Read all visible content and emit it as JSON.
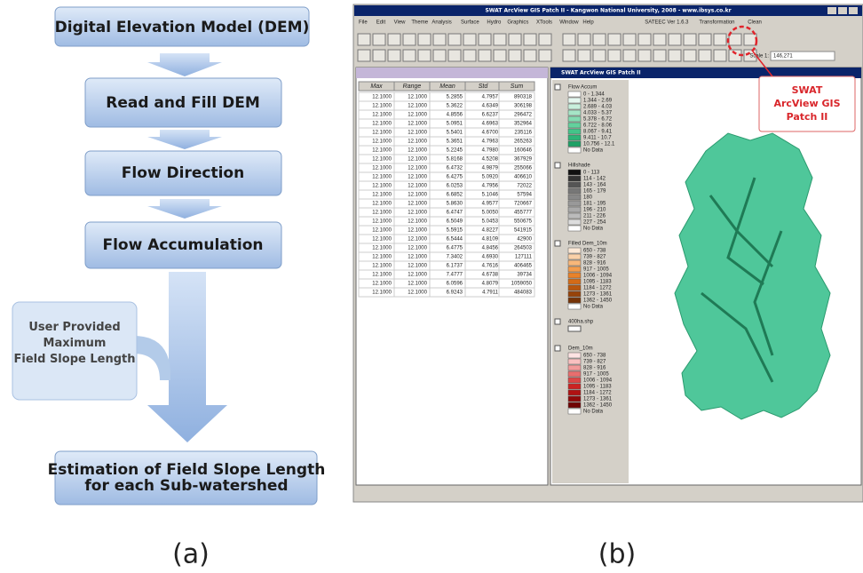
{
  "flowchart": {
    "nodes": [
      {
        "label": "Digital Elevation Model (DEM)"
      },
      {
        "label": "Read and Fill DEM"
      },
      {
        "label": "Flow Direction"
      },
      {
        "label": "Flow Accumulation"
      },
      {
        "label": "Estimation of Field Slope Length for each Sub-watershed"
      }
    ],
    "side_input": "User Provided Maximum Field Slope Length"
  },
  "captions": [
    "(a)",
    "(b)"
  ],
  "screenshot": {
    "title": "SWAT ArcView GIS Patch II - Kangwon National University, 2008 - www.ibsys.co.kr",
    "menus": [
      "File",
      "Edit",
      "View",
      "Theme",
      "Analysis",
      "Surface",
      "Hydro",
      "Graphics",
      "XTools",
      "Window",
      "Help",
      "SATEEC Ver 1.6.3",
      "Transformation",
      "Clean"
    ],
    "scale_label": "Scale 1:",
    "scale_value": "146,271",
    "view_title": "SWAT ArcView GIS Patch II",
    "callout": "SWAT ArcView GIS Patch II",
    "table": {
      "columns": [
        "Max",
        "Range",
        "Mean",
        "Std",
        "Sum"
      ],
      "rows": [
        [
          "12.1000",
          "12.1000",
          "5.2855",
          "4.7957",
          "890318"
        ],
        [
          "12.1000",
          "12.1000",
          "5.3622",
          "4.6349",
          "306198"
        ],
        [
          "12.1000",
          "12.1000",
          "4.8556",
          "6.6237",
          "296472"
        ],
        [
          "12.1000",
          "12.1000",
          "5.0951",
          "4.6963",
          "352964"
        ],
        [
          "12.1000",
          "12.1000",
          "5.5401",
          "4.6700",
          "235116"
        ],
        [
          "12.1000",
          "12.1000",
          "5.3651",
          "4.7963",
          "265263"
        ],
        [
          "12.1000",
          "12.1000",
          "5.2245",
          "4.7980",
          "160646"
        ],
        [
          "12.1000",
          "12.1000",
          "5.8168",
          "4.5208",
          "367929"
        ],
        [
          "12.1000",
          "12.1000",
          "6.4732",
          "4.9879",
          "255066"
        ],
        [
          "12.1000",
          "12.1000",
          "6.4275",
          "5.0920",
          "406610"
        ],
        [
          "12.1000",
          "12.1000",
          "6.0253",
          "4.7956",
          "72022"
        ],
        [
          "12.1000",
          "12.1000",
          "6.6852",
          "5.1046",
          "57594"
        ],
        [
          "12.1000",
          "12.1000",
          "5.8630",
          "4.9577",
          "720667"
        ],
        [
          "12.1000",
          "12.1000",
          "6.4747",
          "5.0050",
          "455777"
        ],
        [
          "12.1000",
          "12.1000",
          "6.5049",
          "5.0453",
          "550675"
        ],
        [
          "12.1000",
          "12.1000",
          "5.5915",
          "4.8227",
          "541915"
        ],
        [
          "12.1000",
          "12.1000",
          "6.5444",
          "4.8109",
          "42900"
        ],
        [
          "12.1000",
          "12.1000",
          "6.4775",
          "4.8456",
          "264503"
        ],
        [
          "12.1000",
          "12.1000",
          "7.3402",
          "4.6930",
          "127111"
        ],
        [
          "12.1000",
          "12.1000",
          "6.1737",
          "4.7616",
          "406465"
        ],
        [
          "12.1000",
          "12.1000",
          "7.4777",
          "4.6738",
          "39734"
        ],
        [
          "12.1000",
          "12.1000",
          "6.0596",
          "4.8079",
          "1059050"
        ],
        [
          "12.1000",
          "12.1000",
          "6.9243",
          "4.7911",
          "484083"
        ]
      ]
    },
    "legend": [
      {
        "name": "Flow Accum",
        "items": [
          "0 - 1.344",
          "1.344 - 2.69",
          "2.689 - 4.03",
          "4.033 - 5.37",
          "5.378 - 6.72",
          "6.722 - 8.06",
          "8.067 - 9.41",
          "9.411 - 10.7",
          "10.756 - 12.1",
          "No Data"
        ]
      },
      {
        "name": "Hillshade",
        "items": [
          "0 - 113",
          "114 - 142",
          "143 - 164",
          "165 - 179",
          "180",
          "181 - 195",
          "196 - 210",
          "211 - 226",
          "227 - 254",
          "No Data"
        ]
      },
      {
        "name": "Filled Dem_10m",
        "items": [
          "650 - 738",
          "739 - 827",
          "828 - 916",
          "917 - 1005",
          "1006 - 1094",
          "1095 - 1183",
          "1184 - 1272",
          "1273 - 1361",
          "1362 - 1450",
          "No Data"
        ]
      },
      {
        "name": "400ha.shp",
        "items": []
      },
      {
        "name": "Dem_10m",
        "items": [
          "650 - 738",
          "739 - 827",
          "828 - 916",
          "917 - 1005",
          "1006 - 1094",
          "1095 - 1183",
          "1184 - 1272",
          "1273 - 1361",
          "1362 - 1450",
          "No Data"
        ]
      }
    ]
  }
}
